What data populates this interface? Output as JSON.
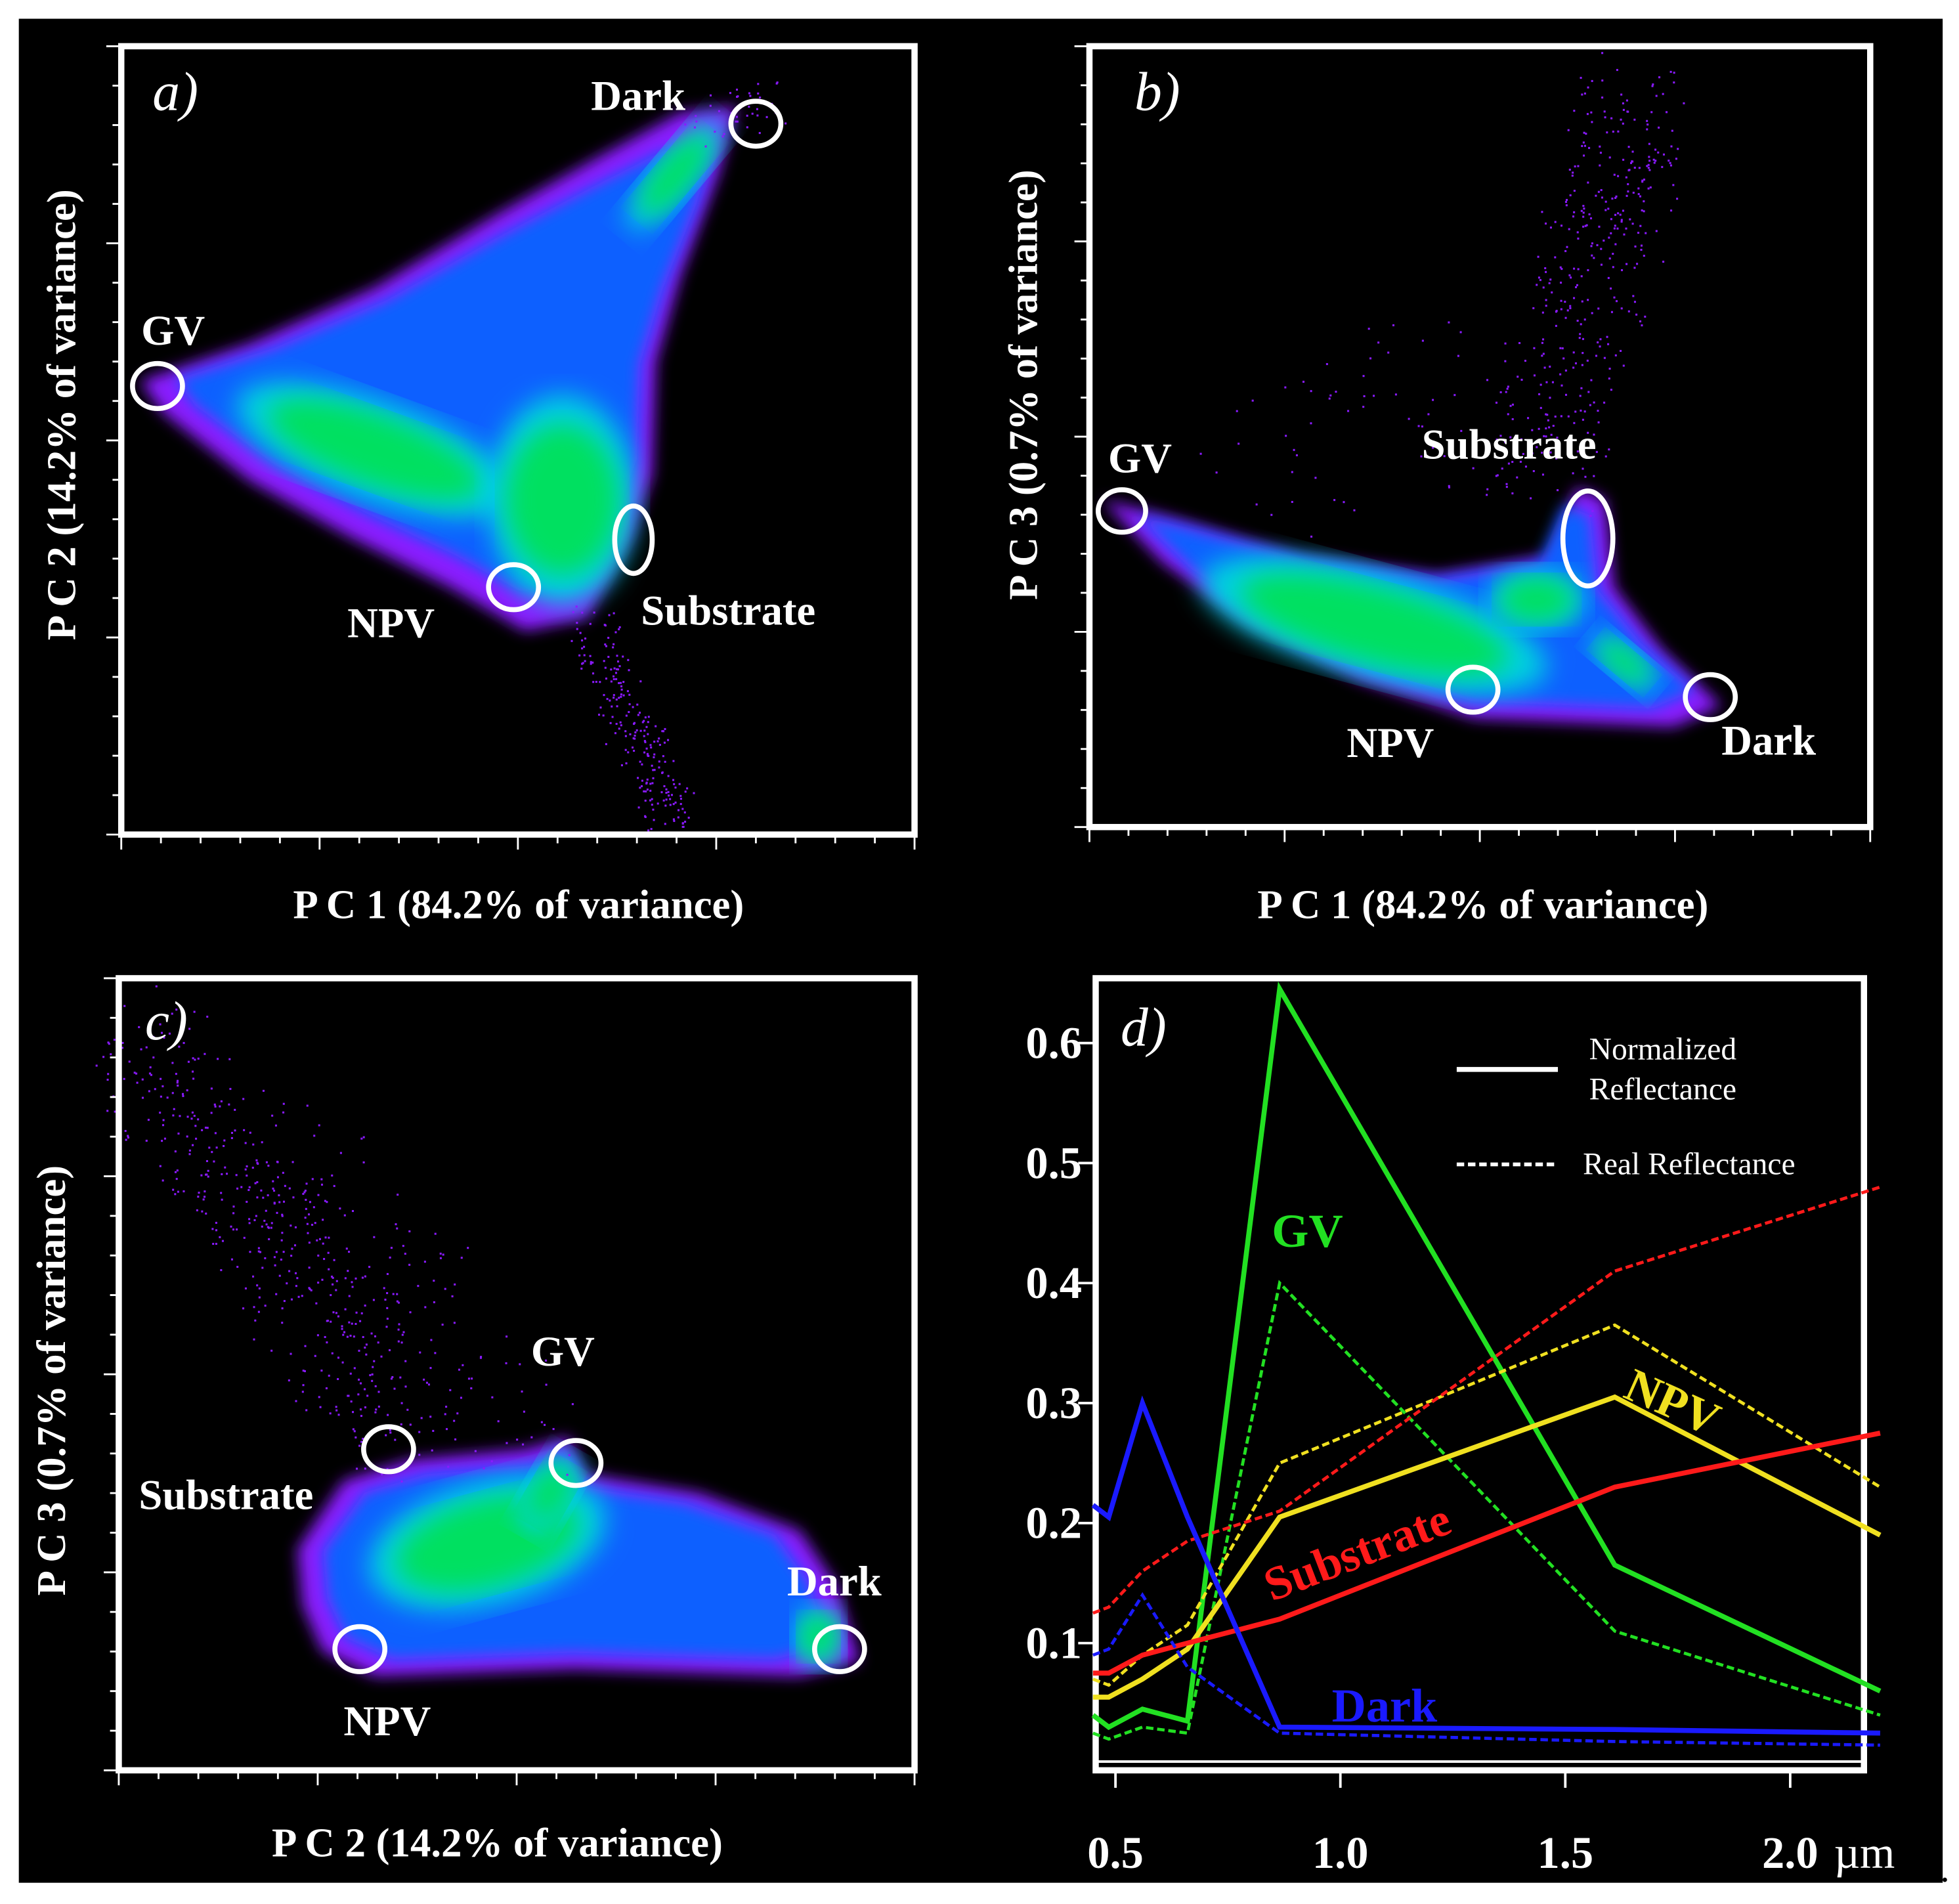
{
  "panels": [
    {
      "id": "a",
      "label": "a)",
      "xlabel": "P C 1 (84.2% of variance)",
      "ylabel": "P C 2 (14.2% of variance)",
      "endmembers": [
        "GV",
        "Dark",
        "NPV",
        "Substrate"
      ]
    },
    {
      "id": "b",
      "label": "b)",
      "xlabel": "P C 1 (84.2% of variance)",
      "ylabel": "P C 3 (0.7% of variance)",
      "endmembers": [
        "GV",
        "Substrate",
        "NPV",
        "Dark"
      ]
    },
    {
      "id": "c",
      "label": "c)",
      "xlabel": "P C 2 (14.2% of variance)",
      "ylabel": "P C 3 (0.7% of variance)",
      "endmembers": [
        "GV",
        "Substrate",
        "NPV",
        "Dark"
      ]
    }
  ],
  "colors": {
    "GV": "#22e022",
    "NPV": "#f0e020",
    "Substrate": "#ff1a1a",
    "Dark": "#1a1aff",
    "density_low": "#8a1aff",
    "density_mid": "#1060ff",
    "density_high": "#00e060"
  },
  "chart_data": {
    "type": "line",
    "label": "d)",
    "x": [
      0.45,
      0.485,
      0.56,
      0.66,
      0.865,
      1.61,
      2.2
    ],
    "xunit": "µm",
    "xticks": [
      "0.5",
      "1.0",
      "1.5",
      "2.0"
    ],
    "yticks": [
      "0.1",
      "0.2",
      "0.3",
      "0.4",
      "0.5",
      "0.6"
    ],
    "xlim": [
      0.456,
      2.164
    ],
    "ylim": [
      -0.006,
      0.654
    ],
    "legend": {
      "solid": "Normalized Reflectance",
      "dashed": "Real Reflectance",
      "placement": "top-right"
    },
    "series": [
      {
        "name": "GV",
        "color": "#22e022",
        "normalized": [
          0.04,
          0.03,
          0.045,
          0.035,
          0.645,
          0.165,
          0.06
        ],
        "real": [
          0.025,
          0.02,
          0.03,
          0.025,
          0.4,
          0.11,
          0.04
        ]
      },
      {
        "name": "NPV",
        "color": "#f0e020",
        "normalized": [
          0.055,
          0.055,
          0.07,
          0.095,
          0.205,
          0.305,
          0.19
        ],
        "real": [
          0.07,
          0.065,
          0.09,
          0.115,
          0.25,
          0.365,
          0.23
        ]
      },
      {
        "name": "Substrate",
        "color": "#ff1a1a",
        "normalized": [
          0.075,
          0.075,
          0.09,
          0.1,
          0.12,
          0.23,
          0.275
        ],
        "real": [
          0.125,
          0.13,
          0.16,
          0.185,
          0.21,
          0.41,
          0.48
        ]
      },
      {
        "name": "Dark",
        "color": "#1a1aff",
        "normalized": [
          0.215,
          0.205,
          0.3,
          0.205,
          0.03,
          0.028,
          0.025
        ],
        "real": [
          0.09,
          0.095,
          0.14,
          0.08,
          0.025,
          0.018,
          0.015
        ]
      }
    ]
  }
}
